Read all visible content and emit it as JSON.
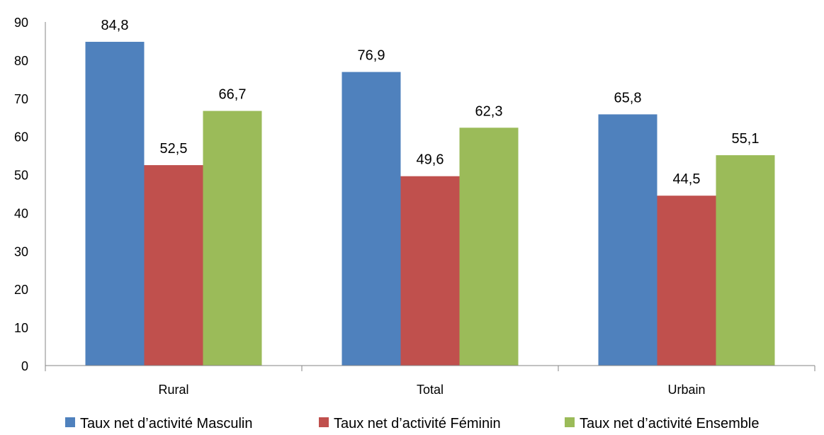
{
  "chart_data": {
    "type": "bar",
    "categories": [
      "Rural",
      "Total",
      "Urbain"
    ],
    "series": [
      {
        "name": "Taux net d’activité Masculin",
        "values": [
          84.8,
          76.9,
          65.8
        ],
        "labels": [
          "84,8",
          "76,9",
          "65,8"
        ],
        "color": "#4F81BD"
      },
      {
        "name": "Taux net d’activité Féminin",
        "values": [
          52.5,
          49.6,
          44.5
        ],
        "labels": [
          "52,5",
          "49,6",
          "44,5"
        ],
        "color": "#C0504D"
      },
      {
        "name": "Taux net d’activité Ensemble",
        "values": [
          66.7,
          62.3,
          55.1
        ],
        "labels": [
          "66,7",
          "62,3",
          "55,1"
        ],
        "color": "#9BBB59"
      }
    ],
    "ylim": [
      0,
      90
    ],
    "yticks": [
      0,
      10,
      20,
      30,
      40,
      50,
      60,
      70,
      80,
      90
    ],
    "title": "",
    "xlabel": "",
    "ylabel": "",
    "grid": false,
    "legend_position": "bottom"
  }
}
